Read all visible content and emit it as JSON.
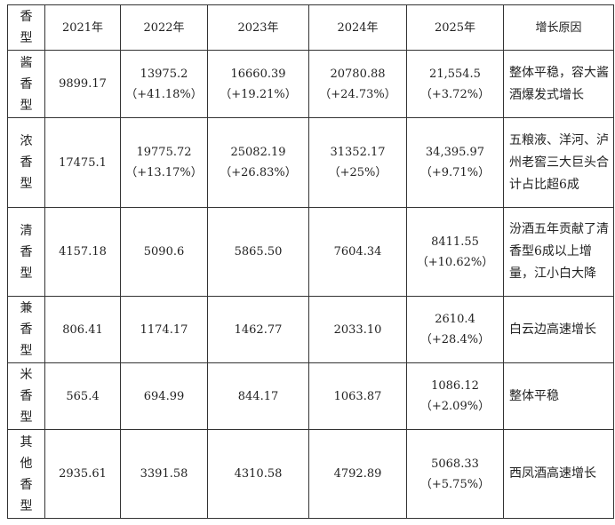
{
  "table": {
    "headers": [
      "香型",
      "2021年",
      "2022年",
      "2023年",
      "2024年",
      "2025年",
      "增长原因"
    ],
    "rows": [
      {
        "type": "酱香型",
        "v2021": "9899.17",
        "v2022": "13975.2",
        "c2022": "（+41.18%）",
        "v2023": "16660.39",
        "c2023": "（+19.21%）",
        "v2024": "20780.88",
        "c2024": "（+24.73%）",
        "v2025": "21,554.5",
        "c2025": "（+3.72%）",
        "reason": "整体平稳，容大酱酒爆发式增长"
      },
      {
        "type": "浓香型",
        "v2021": "17475.1",
        "v2022": "19775.72",
        "c2022": "（+13.17%）",
        "v2023": "25082.19",
        "c2023": "（+26.83%）",
        "v2024": "31352.17",
        "c2024": "（+25%）",
        "v2025": "34,395.97",
        "c2025": "（+9.71%）",
        "reason": "五粮液、洋河、泸州老窖三大巨头合计占比超6成"
      },
      {
        "type": "清香型",
        "v2021": "4157.18",
        "v2022": "5090.6",
        "c2022": "",
        "v2023": "5865.50",
        "c2023": "",
        "v2024": "7604.34",
        "c2024": "",
        "v2025": "8411.55",
        "c2025": "（+10.62%）",
        "reason": "汾酒五年贡献了清香型6成以上增量，江小白大降"
      },
      {
        "type": "兼香型",
        "v2021": "806.41",
        "v2022": "1174.17",
        "c2022": "",
        "v2023": "1462.77",
        "c2023": "",
        "v2024": "2033.10",
        "c2024": "",
        "v2025": "2610.4",
        "c2025": "（+28.4%）",
        "reason": "白云边高速增长"
      },
      {
        "type": "米香型",
        "v2021": "565.4",
        "v2022": "694.99",
        "c2022": "",
        "v2023": "844.17",
        "c2023": "",
        "v2024": "1063.87",
        "c2024": "",
        "v2025": "1086.12",
        "c2025": "（+2.09%）",
        "reason": "整体平稳"
      },
      {
        "type": "其他香型",
        "v2021": "2935.61",
        "v2022": "3391.58",
        "c2022": "",
        "v2023": "4310.58",
        "c2023": "",
        "v2024": "4792.89",
        "c2024": "",
        "v2025": "5068.33",
        "c2025": "（+5.75%）",
        "reason": "西凤酒高速增长"
      }
    ]
  }
}
